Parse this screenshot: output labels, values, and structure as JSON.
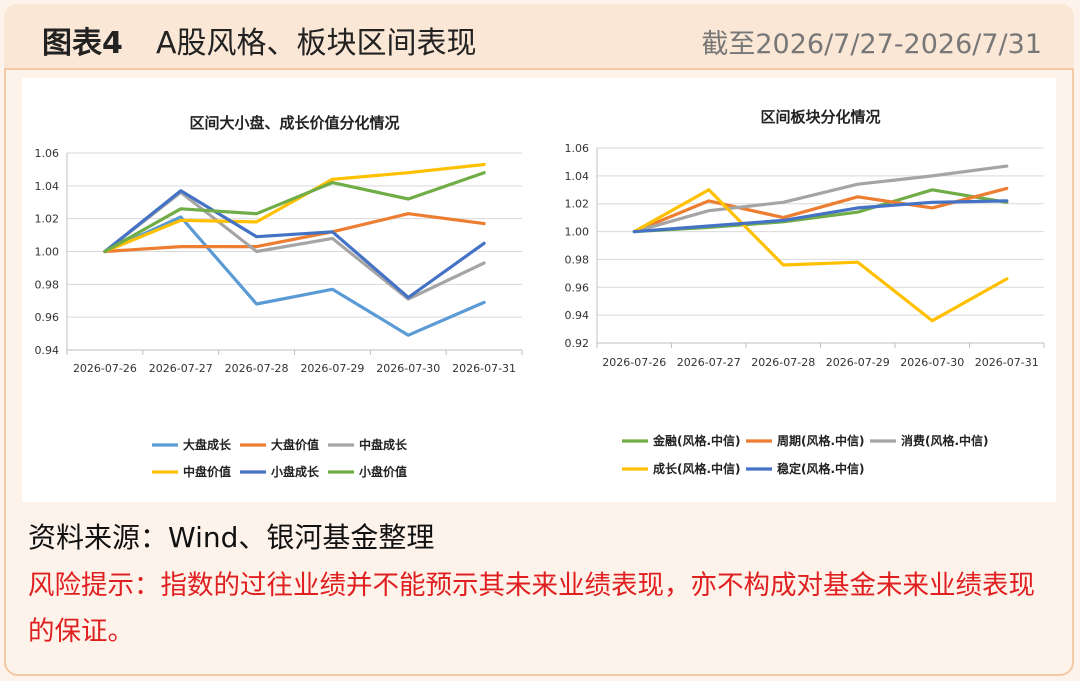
{
  "header": {
    "fig_no": "图表4",
    "title": "A股风格、板块区间表现",
    "period": "截至2026/7/27-2026/7/31"
  },
  "footer": {
    "source": "资料来源：Wind、银河基金整理",
    "risk": "风险提示：指数的过往业绩并不能预示其未来业绩表现，亦不构成对基金未来业绩表现的保证。"
  },
  "chart_data": [
    {
      "type": "line",
      "title": "区间大小盘、成长价值分化情况",
      "categories": [
        "2026-07-26",
        "2026-07-27",
        "2026-07-28",
        "2026-07-29",
        "2026-07-30",
        "2026-07-31"
      ],
      "ylim": [
        0.94,
        1.06
      ],
      "yticks": [
        0.94,
        0.96,
        0.98,
        1.0,
        1.02,
        1.04,
        1.06
      ],
      "ytick_labels": [
        "0.94",
        "0.96",
        "0.98",
        "1.00",
        "1.02",
        "1.04",
        "1.06"
      ],
      "grid": true,
      "legend_position": "bottom",
      "legend_columns": 3,
      "series": [
        {
          "name": "大盘成长",
          "color": "#5b9bd5",
          "values": [
            1.0,
            1.021,
            0.968,
            0.977,
            0.949,
            0.969
          ]
        },
        {
          "name": "大盘价值",
          "color": "#ed7d31",
          "values": [
            1.0,
            1.003,
            1.003,
            1.012,
            1.023,
            1.017
          ]
        },
        {
          "name": "中盘成长",
          "color": "#a5a5a5",
          "values": [
            1.0,
            1.036,
            1.0,
            1.008,
            0.971,
            0.993
          ]
        },
        {
          "name": "中盘价值",
          "color": "#ffc000",
          "values": [
            1.0,
            1.019,
            1.018,
            1.044,
            1.048,
            1.053
          ]
        },
        {
          "name": "小盘成长",
          "color": "#4472c4",
          "values": [
            1.0,
            1.037,
            1.009,
            1.012,
            0.972,
            1.005
          ]
        },
        {
          "name": "小盘价值",
          "color": "#70ad47",
          "values": [
            1.0,
            1.026,
            1.023,
            1.042,
            1.032,
            1.048
          ]
        }
      ]
    },
    {
      "type": "line",
      "title": "区间板块分化情况",
      "categories": [
        "2026-07-26",
        "2026-07-27",
        "2026-07-28",
        "2026-07-29",
        "2026-07-30",
        "2026-07-31"
      ],
      "ylim": [
        0.92,
        1.06
      ],
      "yticks": [
        0.92,
        0.94,
        0.96,
        0.98,
        1.0,
        1.02,
        1.04,
        1.06
      ],
      "ytick_labels": [
        "0.92",
        "0.94",
        "0.96",
        "0.98",
        "1.00",
        "1.02",
        "1.04",
        "1.06"
      ],
      "grid": true,
      "legend_position": "bottom",
      "legend_columns": 3,
      "series": [
        {
          "name": "金融(风格.中信)",
          "color": "#70ad47",
          "values": [
            1.0,
            1.003,
            1.007,
            1.014,
            1.03,
            1.021
          ]
        },
        {
          "name": "周期(风格.中信)",
          "color": "#ed7d31",
          "values": [
            1.0,
            1.022,
            1.01,
            1.025,
            1.017,
            1.031
          ]
        },
        {
          "name": "消费(风格.中信)",
          "color": "#a5a5a5",
          "values": [
            1.0,
            1.015,
            1.021,
            1.034,
            1.04,
            1.047
          ]
        },
        {
          "name": "成长(风格.中信)",
          "color": "#ffc000",
          "values": [
            1.0,
            1.03,
            0.976,
            0.978,
            0.936,
            0.966
          ]
        },
        {
          "name": "稳定(风格.中信)",
          "color": "#4472c4",
          "values": [
            1.0,
            1.004,
            1.008,
            1.017,
            1.021,
            1.022
          ]
        }
      ]
    }
  ]
}
